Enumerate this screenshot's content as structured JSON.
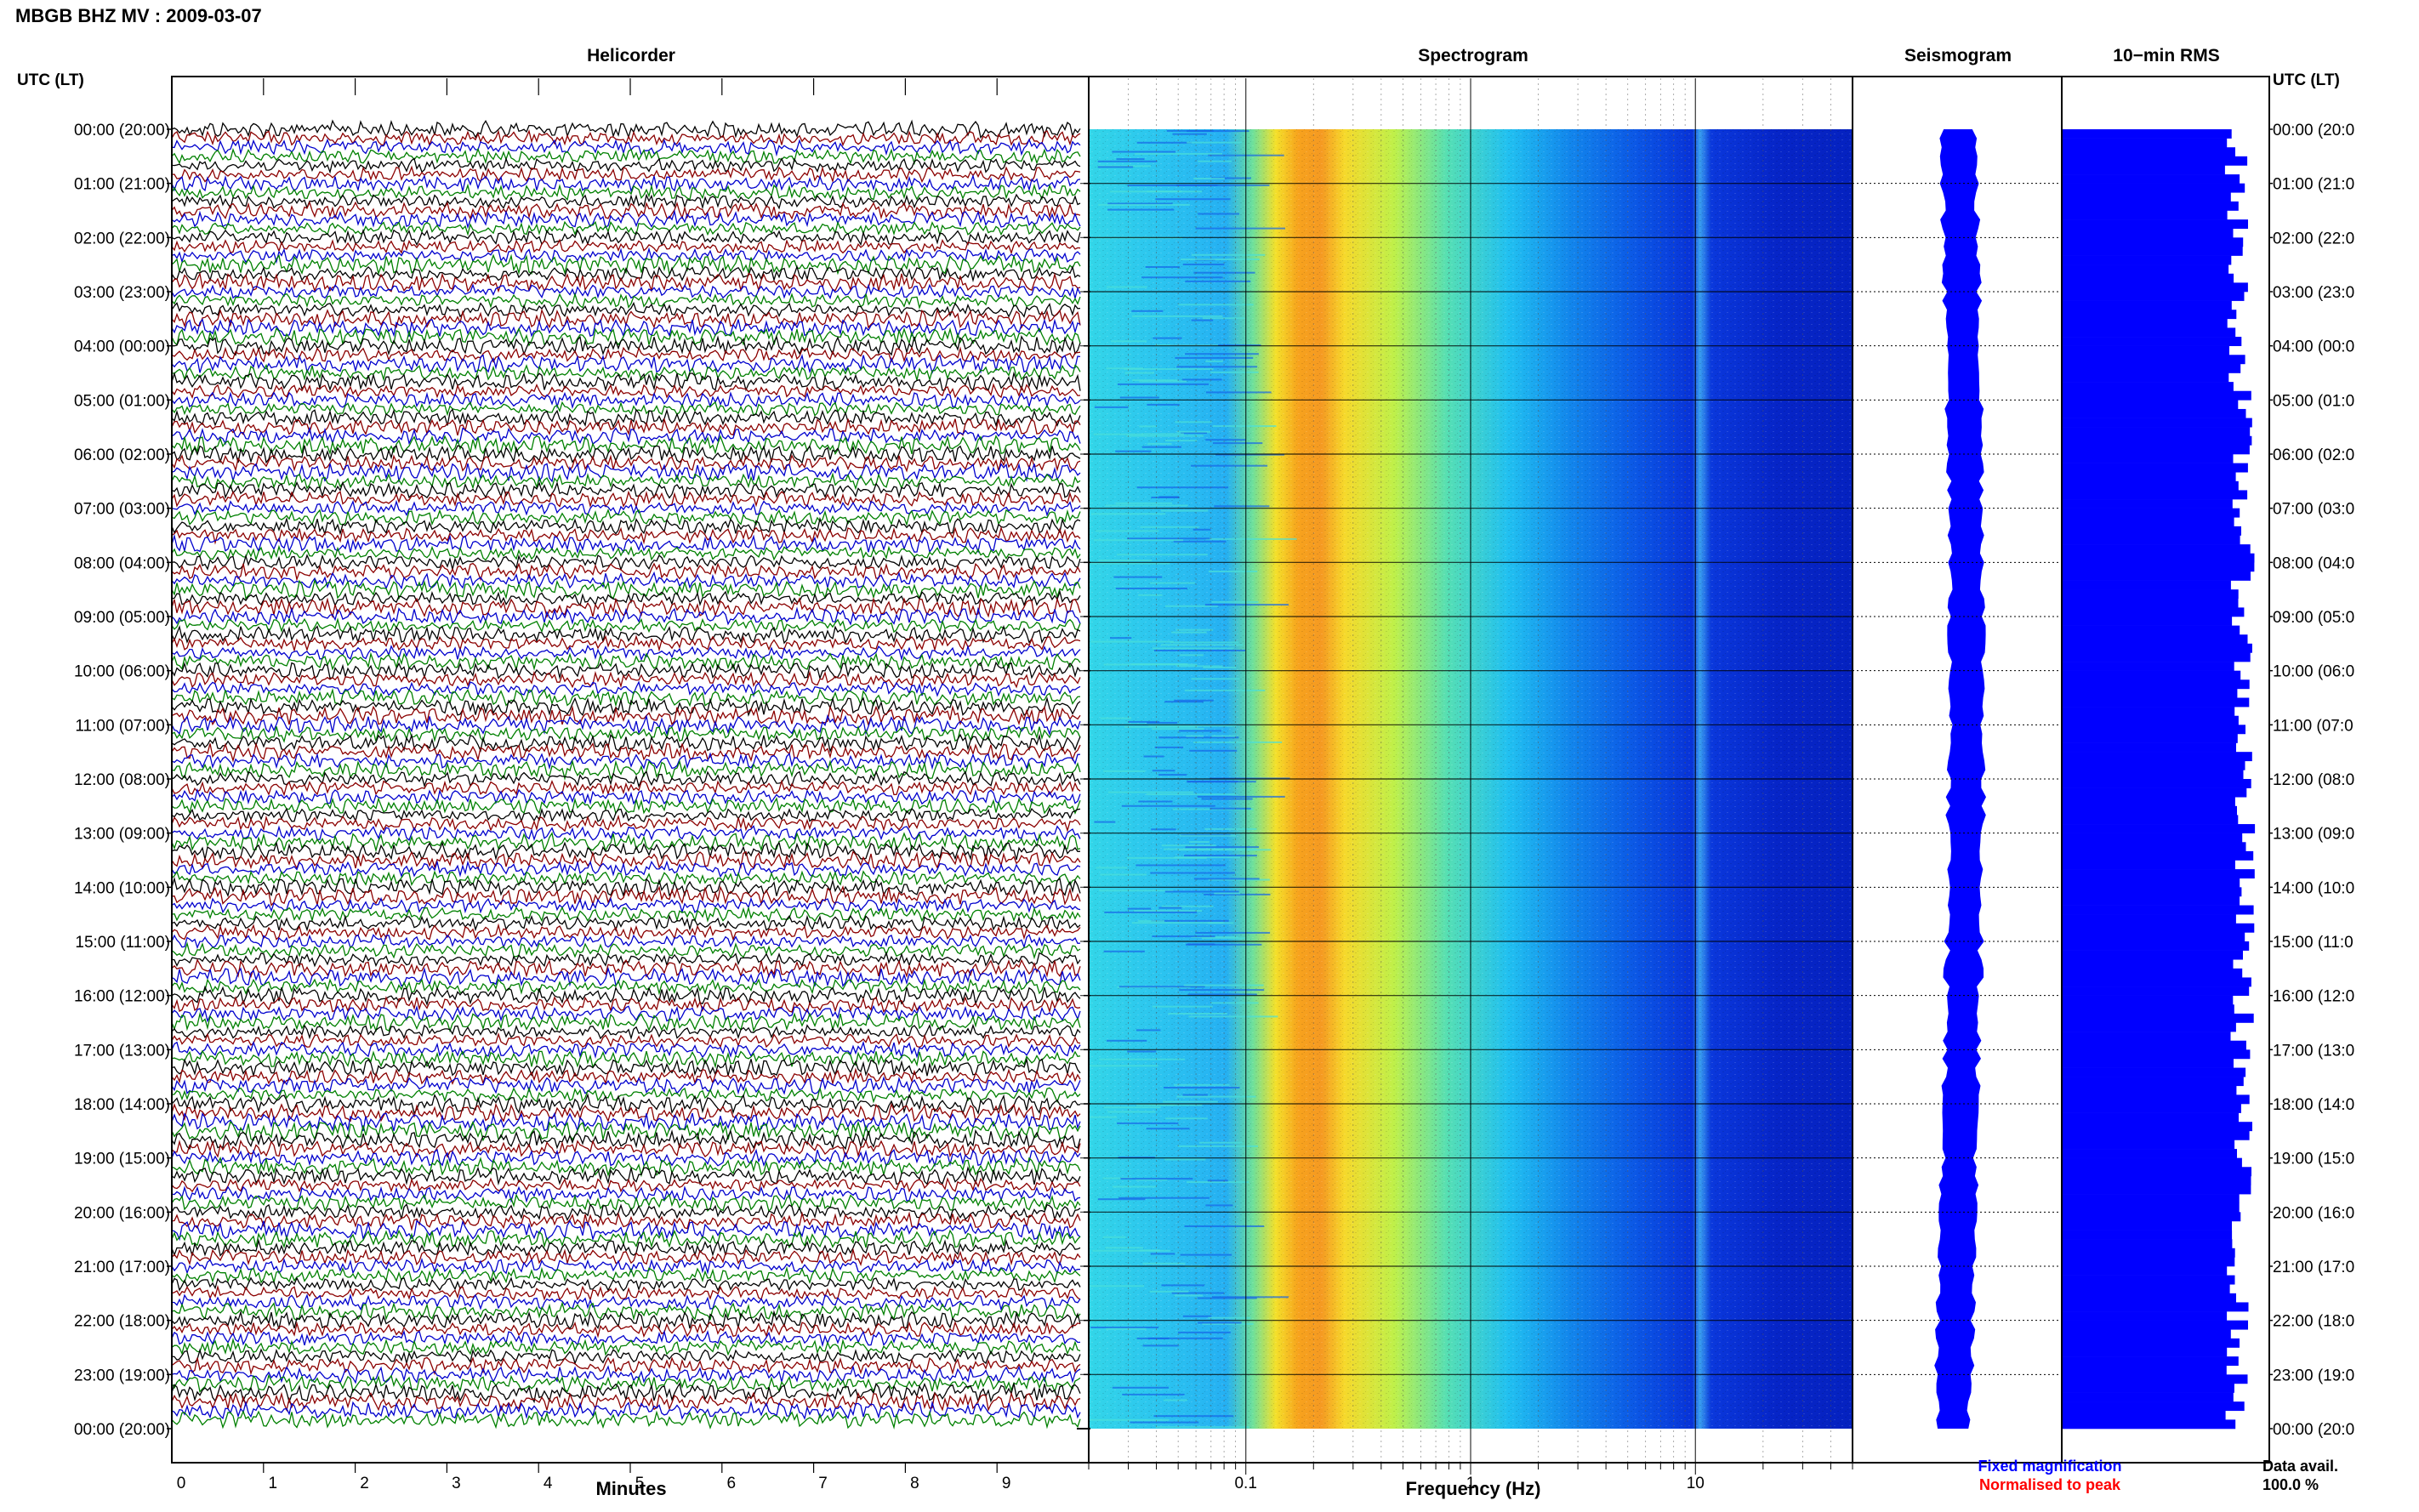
{
  "title": "MBGB BHZ MV : 2009-03-07",
  "time_axis_label": "UTC (LT)",
  "panels": {
    "helicorder": "Helicorder",
    "spectrogram": "Spectrogram",
    "seismogram": "Seismogram",
    "rms": "10−min RMS"
  },
  "footer": {
    "fixed_magnification": "Fixed magnification",
    "normalised_to_peak": "Normalised to peak",
    "data_avail_label": "Data avail.",
    "data_avail_value": "100.0 %"
  },
  "colors": {
    "trace_cycle": [
      "#000000",
      "#8b0000",
      "#0000cd",
      "#008000"
    ],
    "fixed_magnification": "#0000ff",
    "normalised_to_peak": "#ff0000",
    "seismogram_fill": "#0000ff",
    "rms_fill": "#0000ff"
  },
  "chart_data": [
    {
      "type": "line",
      "panel": "Helicorder",
      "xlabel": "Minutes",
      "x_ticks": [
        "0",
        "1",
        "2",
        "3",
        "4",
        "5",
        "6",
        "7",
        "8",
        "9"
      ],
      "xlim": [
        0,
        10
      ],
      "rows_per_hour": 6,
      "hours": 24,
      "left_time_labels": [
        "00:00 (20:00)",
        "01:00 (21:00)",
        "02:00 (22:00)",
        "03:00 (23:00)",
        "04:00 (00:00)",
        "05:00 (01:00)",
        "06:00 (02:00)",
        "07:00 (03:00)",
        "08:00 (04:00)",
        "09:00 (05:00)",
        "10:00 (06:00)",
        "11:00 (07:00)",
        "12:00 (08:00)",
        "13:00 (09:00)",
        "14:00 (10:00)",
        "15:00 (11:00)",
        "16:00 (12:00)",
        "17:00 (13:00)",
        "18:00 (14:00)",
        "19:00 (15:00)",
        "20:00 (16:00)",
        "21:00 (17:00)",
        "22:00 (18:00)",
        "23:00 (19:00)",
        "00:00 (20:00)"
      ]
    },
    {
      "type": "heatmap",
      "panel": "Spectrogram",
      "xlabel": "Frequency (Hz)",
      "x_scale": "log",
      "xlim": [
        0.02,
        50
      ],
      "x_ticks": [
        "0.1",
        "1",
        "10"
      ],
      "peak_band_hz": [
        0.18,
        0.35
      ],
      "line_frequency_hz": 11
    },
    {
      "type": "line",
      "panel": "Seismogram",
      "rows": 144
    },
    {
      "type": "bar",
      "panel": "10−min RMS",
      "rows": 144,
      "right_time_labels": [
        "00:00 (20:0",
        "01:00 (21:0",
        "02:00 (22:0",
        "03:00 (23:0",
        "04:00 (00:0",
        "05:00 (01:0",
        "06:00 (02:0",
        "07:00 (03:0",
        "08:00 (04:0",
        "09:00 (05:0",
        "10:00 (06:0",
        "11:00 (07:0",
        "12:00 (08:0",
        "13:00 (09:0",
        "14:00 (10:0",
        "15:00 (11:0",
        "16:00 (12:0",
        "17:00 (13:0",
        "18:00 (14:0",
        "19:00 (15:0",
        "20:00 (16:0",
        "21:00 (17:0",
        "22:00 (18:0",
        "23:00 (19:0",
        "00:00 (20:0"
      ]
    }
  ]
}
